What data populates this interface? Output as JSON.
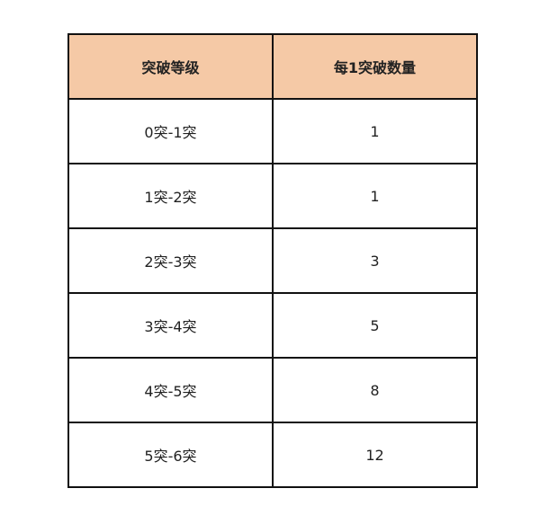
{
  "table": {
    "header_color": "#F5C9A6",
    "headers": [
      "突破等级",
      "每1突破数量"
    ],
    "rows": [
      [
        "0突-1突",
        "1"
      ],
      [
        "1突-2突",
        "1"
      ],
      [
        "2突-3突",
        "3"
      ],
      [
        "3突-4突",
        "5"
      ],
      [
        "4突-5突",
        "8"
      ],
      [
        "5突-6突",
        "12"
      ]
    ]
  }
}
